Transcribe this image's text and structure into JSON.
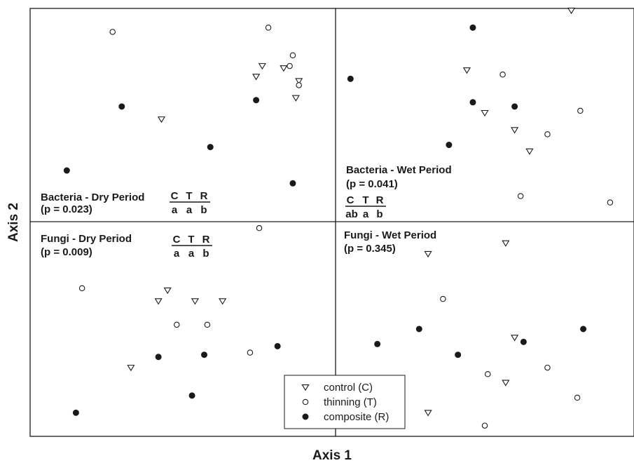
{
  "chart_data": {
    "type": "scatter",
    "xlabel": "Axis 1",
    "ylabel": "Axis 2",
    "colors": {
      "ink": "#1a1a1a",
      "background": "#ffffff"
    },
    "symbols": {
      "control": "open-triangle-down",
      "thinning": "open-circle",
      "composite": "filled-circle"
    },
    "legend": {
      "placement": "bottom-center",
      "entries": [
        {
          "key": "control",
          "label": "control (C)"
        },
        {
          "key": "thinning",
          "label": "thinning (T)"
        },
        {
          "key": "composite",
          "label": "composite (R)"
        }
      ]
    },
    "panels": [
      {
        "id": "bacteria-dry",
        "quadrant": "top-left",
        "title": "Bacteria - Dry Period",
        "pvalue": "(p = 0.023)",
        "groups": {
          "headers": [
            "C",
            "T",
            "R"
          ],
          "letters": [
            "a",
            "a",
            "b"
          ]
        },
        "series": [
          {
            "key": "control",
            "points": [
              [
                0.43,
                0.48
              ],
              [
                0.74,
                0.68
              ],
              [
                0.76,
                0.73
              ],
              [
                0.83,
                0.72
              ],
              [
                0.88,
                0.66
              ],
              [
                0.87,
                0.58
              ]
            ]
          },
          {
            "key": "thinning",
            "points": [
              [
                0.27,
                0.89
              ],
              [
                0.78,
                0.91
              ],
              [
                0.86,
                0.78
              ],
              [
                0.85,
                0.73
              ],
              [
                0.88,
                0.64
              ]
            ]
          },
          {
            "key": "composite",
            "points": [
              [
                0.3,
                0.54
              ],
              [
                0.12,
                0.24
              ],
              [
                0.59,
                0.35
              ],
              [
                0.74,
                0.57
              ],
              [
                0.86,
                0.18
              ]
            ]
          }
        ]
      },
      {
        "id": "bacteria-wet",
        "quadrant": "top-right",
        "title": "Bacteria - Wet Period",
        "pvalue": "(p = 0.041)",
        "groups": {
          "headers": [
            "C",
            "T",
            "R"
          ],
          "letters": [
            "ab",
            "a",
            "b"
          ]
        },
        "series": [
          {
            "key": "control",
            "points": [
              [
                0.44,
                0.71
              ],
              [
                0.5,
                0.51
              ],
              [
                0.6,
                0.43
              ],
              [
                0.65,
                0.33
              ],
              [
                0.79,
                0.99
              ]
            ]
          },
          {
            "key": "thinning",
            "points": [
              [
                0.56,
                0.69
              ],
              [
                0.71,
                0.41
              ],
              [
                0.82,
                0.52
              ],
              [
                0.62,
                0.12
              ],
              [
                0.92,
                0.09
              ]
            ]
          },
          {
            "key": "composite",
            "points": [
              [
                0.05,
                0.67
              ],
              [
                0.46,
                0.91
              ],
              [
                0.46,
                0.56
              ],
              [
                0.6,
                0.54
              ],
              [
                0.38,
                0.36
              ]
            ]
          }
        ]
      },
      {
        "id": "fungi-dry",
        "quadrant": "bottom-left",
        "title": "Fungi - Dry Period",
        "pvalue": "(p = 0.009)",
        "groups": {
          "headers": [
            "C",
            "T",
            "R"
          ],
          "letters": [
            "a",
            "a",
            "b"
          ]
        },
        "series": [
          {
            "key": "control",
            "points": [
              [
                0.42,
                0.63
              ],
              [
                0.45,
                0.68
              ],
              [
                0.54,
                0.63
              ],
              [
                0.63,
                0.63
              ],
              [
                0.33,
                0.32
              ]
            ]
          },
          {
            "key": "thinning",
            "points": [
              [
                0.75,
                0.97
              ],
              [
                0.17,
                0.69
              ],
              [
                0.48,
                0.52
              ],
              [
                0.58,
                0.52
              ],
              [
                0.72,
                0.39
              ]
            ]
          },
          {
            "key": "composite",
            "points": [
              [
                0.42,
                0.37
              ],
              [
                0.57,
                0.38
              ],
              [
                0.81,
                0.42
              ],
              [
                0.53,
                0.19
              ],
              [
                0.15,
                0.11
              ]
            ]
          }
        ]
      },
      {
        "id": "fungi-wet",
        "quadrant": "bottom-right",
        "title": "Fungi - Wet Period",
        "pvalue": "(p = 0.345)",
        "groups": null,
        "series": [
          {
            "key": "control",
            "points": [
              [
                0.31,
                0.85
              ],
              [
                0.57,
                0.9
              ],
              [
                0.6,
                0.46
              ],
              [
                0.57,
                0.25
              ],
              [
                0.31,
                0.11
              ]
            ]
          },
          {
            "key": "thinning",
            "points": [
              [
                0.36,
                0.64
              ],
              [
                0.51,
                0.29
              ],
              [
                0.71,
                0.32
              ],
              [
                0.81,
                0.18
              ],
              [
                0.5,
                0.05
              ]
            ]
          },
          {
            "key": "composite",
            "points": [
              [
                0.14,
                0.43
              ],
              [
                0.28,
                0.5
              ],
              [
                0.41,
                0.38
              ],
              [
                0.63,
                0.44
              ],
              [
                0.83,
                0.5
              ]
            ]
          }
        ]
      }
    ]
  }
}
